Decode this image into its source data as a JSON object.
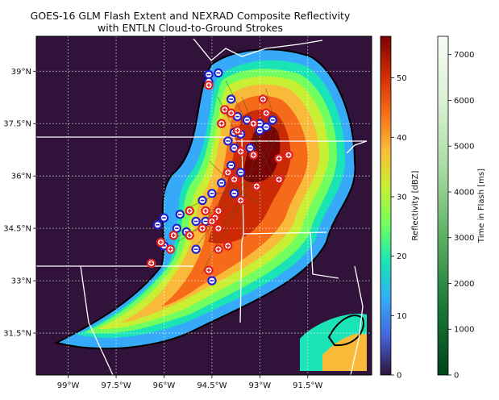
{
  "chart_data": {
    "type": "map",
    "title_lines": [
      "GOES-16 GLM Flash Extent and NEXRAD Composite Reflectivity",
      "with ENTLN Cloud-to-Ground Strokes"
    ],
    "map": {
      "lon_range": [
        -100.0,
        -89.5
      ],
      "lat_range": [
        30.3,
        40.0
      ],
      "lon_ticks": [
        -99,
        -97.5,
        -96,
        -94.5,
        -93,
        -91.5
      ],
      "lon_tick_labels": [
        "99°W",
        "97.5°W",
        "96°W",
        "94.5°W",
        "93°W",
        "91.5°W"
      ],
      "lat_ticks": [
        39,
        37.5,
        36,
        34.5,
        33,
        31.5
      ],
      "lat_tick_labels": [
        "39°N",
        "37.5°N",
        "36°N",
        "34.5°N",
        "33°N",
        "31.5°N"
      ],
      "grid": true,
      "background_color": "#30123b"
    },
    "colorbars": [
      {
        "label": "Reflectivity [dBZ]",
        "range": [
          0,
          57
        ],
        "ticks": [
          0,
          10,
          20,
          30,
          40,
          50
        ],
        "tick_labels": [
          "0",
          "10",
          "20",
          "30",
          "40",
          "50"
        ],
        "colormap": "turbo",
        "colors": [
          "#30123b",
          "#4662d7",
          "#36aaf9",
          "#1ae4b6",
          "#72fe5e",
          "#c8ef34",
          "#faba39",
          "#f66b19",
          "#cb2a04",
          "#7a0403"
        ]
      },
      {
        "label": "Time in Flash [ms]",
        "range": [
          0,
          7400
        ],
        "ticks": [
          0,
          1000,
          2000,
          3000,
          4000,
          5000,
          6000,
          7000
        ],
        "tick_labels": [
          "0",
          "1000",
          "2000",
          "3000",
          "4000",
          "5000",
          "6000",
          "7000"
        ],
        "colormap": "greens",
        "colors": [
          "#00441b",
          "#1b7837",
          "#5aae61",
          "#a6dba0",
          "#d9f0d3",
          "#f7fcf5"
        ]
      }
    ],
    "strokes": {
      "negative_color": "#2222cc",
      "positive_color": "#e02020",
      "negative": [
        [
          -94.6,
          38.9
        ],
        [
          -94.3,
          38.95
        ],
        [
          -94.6,
          38.7
        ],
        [
          -93.9,
          38.2
        ],
        [
          -93.7,
          37.7
        ],
        [
          -93.4,
          37.6
        ],
        [
          -93.0,
          37.5
        ],
        [
          -92.6,
          37.6
        ],
        [
          -93.8,
          37.25
        ],
        [
          -93.6,
          37.2
        ],
        [
          -93.0,
          37.3
        ],
        [
          -92.8,
          37.4
        ],
        [
          -94.0,
          37.0
        ],
        [
          -93.8,
          36.8
        ],
        [
          -93.3,
          36.8
        ],
        [
          -93.9,
          36.3
        ],
        [
          -93.6,
          36.1
        ],
        [
          -94.2,
          35.8
        ],
        [
          -94.5,
          35.5
        ],
        [
          -94.8,
          35.3
        ],
        [
          -93.8,
          35.5
        ],
        [
          -95.0,
          34.7
        ],
        [
          -95.5,
          34.9
        ],
        [
          -95.6,
          34.5
        ],
        [
          -96.0,
          34.8
        ],
        [
          -96.2,
          34.6
        ],
        [
          -95.3,
          34.4
        ],
        [
          -96.0,
          34.0
        ],
        [
          -95.0,
          33.9
        ],
        [
          -94.7,
          34.7
        ],
        [
          -94.5,
          33.0
        ]
      ],
      "positive": [
        [
          -94.6,
          38.6
        ],
        [
          -92.9,
          38.2
        ],
        [
          -94.1,
          37.9
        ],
        [
          -93.9,
          37.8
        ],
        [
          -93.2,
          37.5
        ],
        [
          -94.2,
          37.5
        ],
        [
          -92.8,
          37.8
        ],
        [
          -93.7,
          37.3
        ],
        [
          -93.6,
          36.7
        ],
        [
          -93.2,
          36.6
        ],
        [
          -92.4,
          36.5
        ],
        [
          -92.4,
          35.9
        ],
        [
          -92.1,
          36.6
        ],
        [
          -94.0,
          36.1
        ],
        [
          -93.8,
          35.9
        ],
        [
          -93.1,
          35.7
        ],
        [
          -93.6,
          35.3
        ],
        [
          -94.3,
          35.0
        ],
        [
          -94.7,
          35.0
        ],
        [
          -95.2,
          35.0
        ],
        [
          -94.4,
          34.8
        ],
        [
          -94.5,
          34.7
        ],
        [
          -94.3,
          34.5
        ],
        [
          -94.8,
          34.5
        ],
        [
          -95.2,
          34.3
        ],
        [
          -95.7,
          34.3
        ],
        [
          -96.1,
          34.1
        ],
        [
          -95.8,
          33.9
        ],
        [
          -94.3,
          33.9
        ],
        [
          -94.0,
          34.0
        ],
        [
          -96.4,
          33.5
        ],
        [
          -94.6,
          33.3
        ]
      ]
    }
  }
}
